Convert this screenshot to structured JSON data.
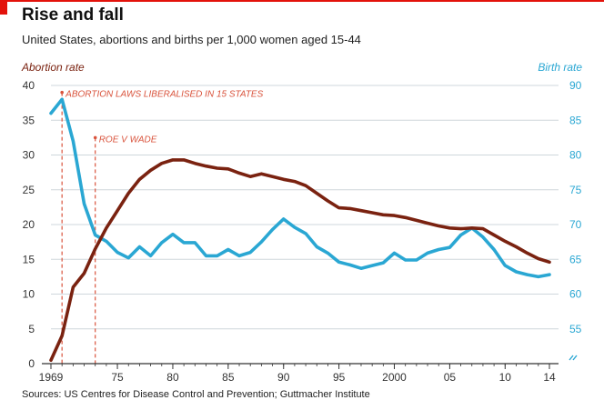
{
  "title": "Rise and fall",
  "subtitle": "United States, abortions and births per 1,000 women aged 15-44",
  "source": "Sources: US Centres for Disease Control and Prevention; Guttmacher Institute",
  "colors": {
    "abortion": "#7a2210",
    "birth": "#2aa7d3",
    "annotation": "#d9533c",
    "accent": "#e3120b",
    "grid": "#cfd7dc",
    "axis": "#333333"
  },
  "chart_data": {
    "type": "line",
    "title": "Rise and fall",
    "x_ticks": [
      {
        "x": 1969,
        "label": "1969"
      },
      {
        "x": 1975,
        "label": "75"
      },
      {
        "x": 1980,
        "label": "80"
      },
      {
        "x": 1985,
        "label": "85"
      },
      {
        "x": 1990,
        "label": "90"
      },
      {
        "x": 1995,
        "label": "95"
      },
      {
        "x": 2000,
        "label": "2000"
      },
      {
        "x": 2005,
        "label": "05"
      },
      {
        "x": 2010,
        "label": "10"
      },
      {
        "x": 2014,
        "label": "14"
      }
    ],
    "xlim": [
      1969,
      2014
    ],
    "y_left": {
      "label": "Abortion rate",
      "range": [
        0,
        40
      ],
      "ticks": [
        0,
        5,
        10,
        15,
        20,
        25,
        30,
        35,
        40
      ]
    },
    "y_right": {
      "label": "Birth rate",
      "range": [
        50,
        90
      ],
      "ticks": [
        55,
        60,
        65,
        70,
        75,
        80,
        85,
        90
      ],
      "axis_break": true
    },
    "grid": true,
    "series": [
      {
        "name": "Abortion rate",
        "axis": "left",
        "color": "#7a2210",
        "x": [
          1969,
          1970,
          1971,
          1972,
          1973,
          1974,
          1975,
          1976,
          1977,
          1978,
          1979,
          1980,
          1981,
          1982,
          1983,
          1984,
          1985,
          1986,
          1987,
          1988,
          1989,
          1990,
          1991,
          1992,
          1993,
          1994,
          1995,
          1996,
          1997,
          1998,
          1999,
          2000,
          2001,
          2002,
          2003,
          2004,
          2005,
          2006,
          2007,
          2008,
          2009,
          2010,
          2011,
          2012,
          2013,
          2014
        ],
        "values": [
          0.5,
          4,
          11,
          13,
          16.5,
          19.5,
          22,
          24.5,
          26.5,
          27.8,
          28.8,
          29.3,
          29.3,
          28.8,
          28.4,
          28.1,
          28,
          27.4,
          26.9,
          27.3,
          26.9,
          26.5,
          26.2,
          25.6,
          24.5,
          23.4,
          22.4,
          22.3,
          22,
          21.7,
          21.4,
          21.3,
          21,
          20.6,
          20.2,
          19.8,
          19.5,
          19.4,
          19.5,
          19.4,
          18.5,
          17.6,
          16.8,
          15.9,
          15.1,
          14.6
        ]
      },
      {
        "name": "Birth rate",
        "axis": "right",
        "color": "#2aa7d3",
        "x": [
          1969,
          1970,
          1971,
          1972,
          1973,
          1974,
          1975,
          1976,
          1977,
          1978,
          1979,
          1980,
          1981,
          1982,
          1983,
          1984,
          1985,
          1986,
          1987,
          1988,
          1989,
          1990,
          1991,
          1992,
          1993,
          1994,
          1995,
          1996,
          1997,
          1998,
          1999,
          2000,
          2001,
          2002,
          2003,
          2004,
          2005,
          2006,
          2007,
          2008,
          2009,
          2010,
          2011,
          2012,
          2013,
          2014
        ],
        "values": [
          86,
          88,
          82,
          73,
          68.5,
          67.6,
          66,
          65.2,
          66.8,
          65.5,
          67.4,
          68.6,
          67.4,
          67.4,
          65.5,
          65.5,
          66.4,
          65.5,
          66,
          67.5,
          69.3,
          70.8,
          69.6,
          68.7,
          66.8,
          65.9,
          64.6,
          64.2,
          63.7,
          64.1,
          64.5,
          65.9,
          64.9,
          64.9,
          65.9,
          66.4,
          66.7,
          68.5,
          69.5,
          68.2,
          66.4,
          64.1,
          63.2,
          62.8,
          62.5,
          62.8
        ]
      }
    ],
    "annotations": [
      {
        "x": 1970,
        "y": 39,
        "label": "ABORTION LAWS LIBERALISED IN 15 STATES"
      },
      {
        "x": 1973,
        "y": 32.5,
        "label": "ROE V WADE"
      }
    ]
  }
}
